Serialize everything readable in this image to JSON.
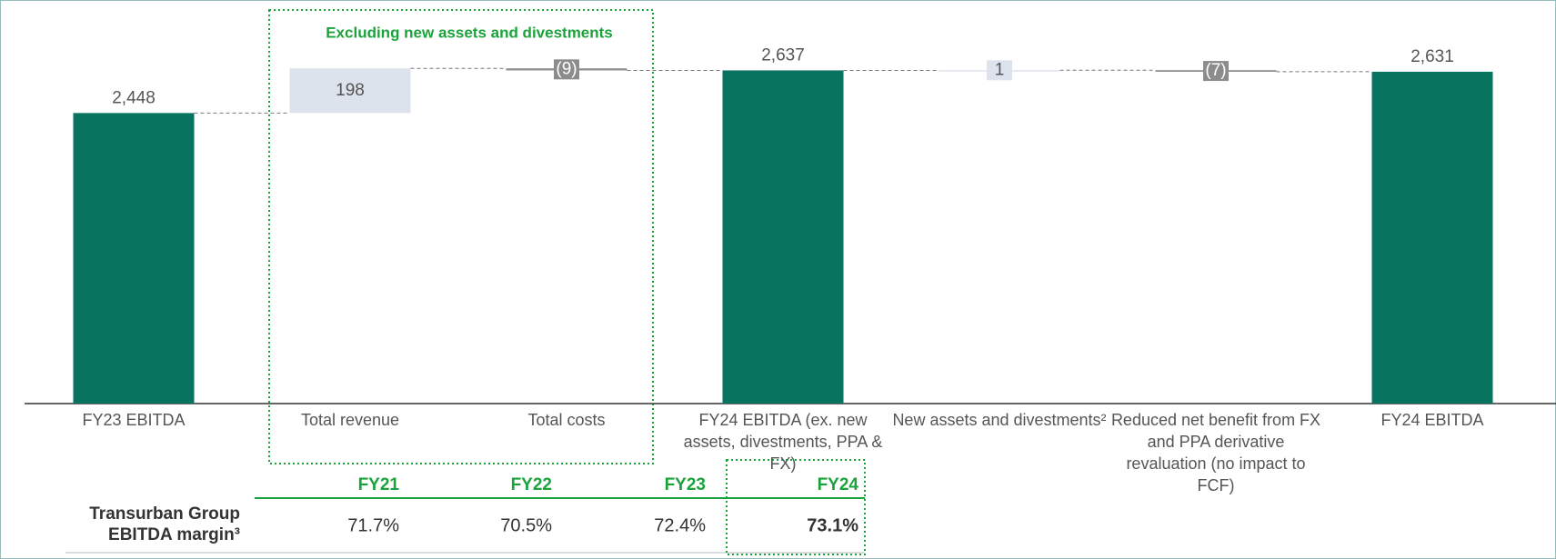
{
  "chart_data": {
    "type": "waterfall",
    "categories": [
      "FY23 EBITDA",
      "Total revenue",
      "Total costs",
      "FY24 EBITDA (ex. new assets, divestments, PPA & FX)",
      "New assets and divestments²",
      "Reduced net benefit from FX and PPA derivative revaluation (no impact to FCF)",
      "FY24 EBITDA"
    ],
    "values": [
      2448,
      198,
      -9,
      2637,
      1,
      -7,
      2631
    ],
    "value_labels": [
      "2,448",
      "198",
      "(9)",
      "2,637",
      "1",
      "(7)",
      "2,631"
    ],
    "measure": [
      "absolute",
      "relative",
      "relative",
      "absolute",
      "relative",
      "relative",
      "absolute"
    ],
    "total_color": "#08735f",
    "increase_color": "#dde3ec",
    "decrease_color": "#8c8c8c",
    "ylim": [
      1160,
      2750
    ],
    "annotation": "Excluding new assets and divestments"
  },
  "table": {
    "columns": [
      "FY21",
      "FY22",
      "FY23",
      "FY24"
    ],
    "rows": [
      {
        "label": "Transurban Group EBITDA margin³",
        "values": [
          "71.7%",
          "70.5%",
          "72.4%",
          "73.1%"
        ]
      }
    ]
  }
}
